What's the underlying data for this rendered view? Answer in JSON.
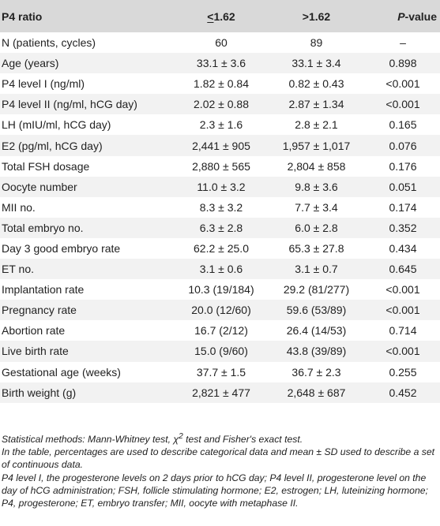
{
  "table": {
    "header": {
      "col1": "P4 ratio",
      "col2_symbol": "<",
      "col2_value": "1.62",
      "col3": ">1.62",
      "col4_italic": "P",
      "col4_rest": "-value"
    },
    "rows": [
      {
        "label": "N (patients, cycles)",
        "low": "60",
        "high": "89",
        "p": "–"
      },
      {
        "label": "Age (years)",
        "low": "33.1 ± 3.6",
        "high": "33.1 ± 3.4",
        "p": "0.898"
      },
      {
        "label": "P4 level I (ng/ml)",
        "low": "1.82 ± 0.84",
        "high": "0.82 ± 0.43",
        "p": "<0.001"
      },
      {
        "label": "P4 level II (ng/ml, hCG day)",
        "low": "2.02 ± 0.88",
        "high": "2.87 ± 1.34",
        "p": "<0.001"
      },
      {
        "label": "LH (mIU/ml, hCG day)",
        "low": "2.3 ± 1.6",
        "high": "2.8 ± 2.1",
        "p": "0.165"
      },
      {
        "label": "E2 (pg/ml, hCG day)",
        "low": "2,441 ± 905",
        "high": "1,957 ± 1,017",
        "p": "0.076"
      },
      {
        "label": "Total FSH dosage",
        "low": "2,880 ± 565",
        "high": "2,804 ± 858",
        "p": "0.176"
      },
      {
        "label": "Oocyte number",
        "low": "11.0 ± 3.2",
        "high": "9.8 ± 3.6",
        "p": "0.051"
      },
      {
        "label": "MII no.",
        "low": "8.3 ± 3.2",
        "high": "7.7 ± 3.4",
        "p": "0.174"
      },
      {
        "label": "Total embryo no.",
        "low": "6.3 ± 2.8",
        "high": "6.0 ± 2.8",
        "p": "0.352"
      },
      {
        "label": "Day 3 good embryo rate",
        "low": "62.2 ± 25.0",
        "high": "65.3 ± 27.8",
        "p": "0.434"
      },
      {
        "label": "ET no.",
        "low": "3.1 ± 0.6",
        "high": "3.1 ± 0.7",
        "p": "0.645"
      },
      {
        "label": "Implantation rate",
        "low": "10.3 (19/184)",
        "high": "29.2 (81/277)",
        "p": "<0.001"
      },
      {
        "label": "Pregnancy rate",
        "low": "20.0 (12/60)",
        "high": "59.6 (53/89)",
        "p": "<0.001"
      },
      {
        "label": "Abortion rate",
        "low": "16.7 (2/12)",
        "high": "26.4 (14/53)",
        "p": "0.714"
      },
      {
        "label": "Live birth rate",
        "low": "15.0 (9/60)",
        "high": "43.8 (39/89)",
        "p": "<0.001"
      },
      {
        "label": "Gestational age (weeks)",
        "low": "37.7 ± 1.5",
        "high": "36.7 ± 2.3",
        "p": "0.255"
      },
      {
        "label": "Birth weight (g)",
        "low": "2,821 ± 477",
        "high": "2,648 ± 687",
        "p": "0.452"
      }
    ]
  },
  "notes": {
    "line1_pre": "Statistical methods: Mann-Whitney test, χ",
    "line1_sup": "2",
    "line1_post": " test and Fisher's exact test.",
    "line2": "In the table, percentages are used to describe categorical data and mean ± SD used to describe a set of continuous data.",
    "line3": "P4 level I, the progesterone levels on 2 days prior to hCG day; P4 level II, progesterone level on the day of hCG administration; FSH, follicle stimulating hormone; E2, estrogen; LH, luteinizing hormone; P4, progesterone; ET, embryo transfer; MII, oocyte with metaphase II."
  },
  "colors": {
    "header_bg": "#d9d9d9",
    "zebra_bg": "#f2f2f2",
    "text": "#222222"
  }
}
